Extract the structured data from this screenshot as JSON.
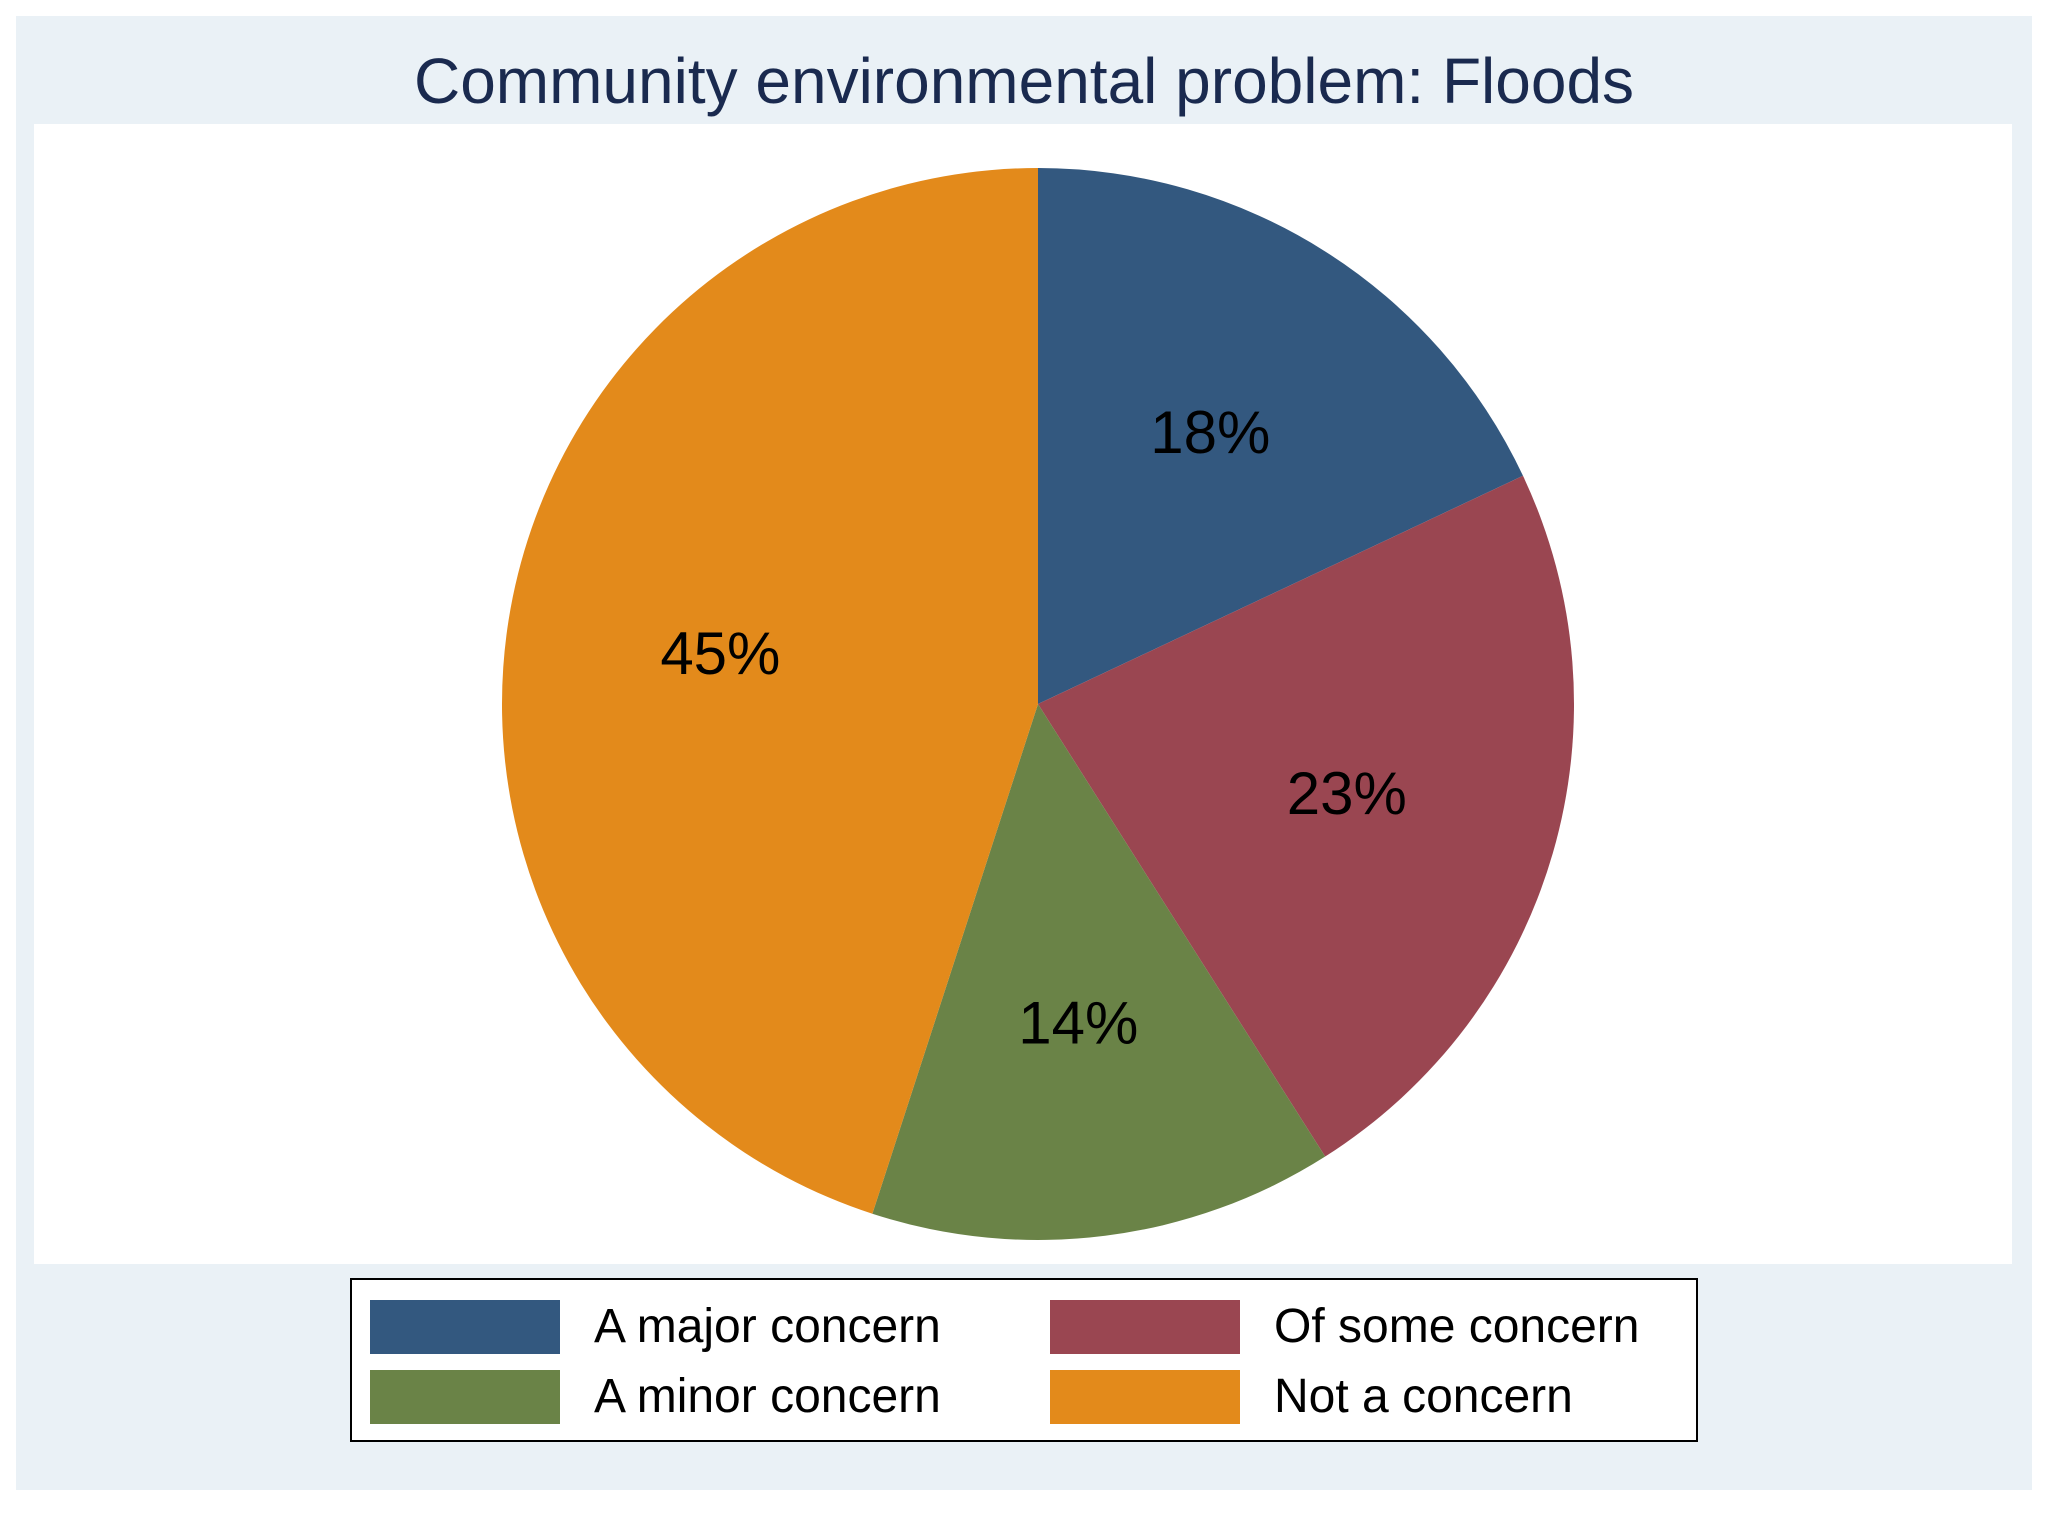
{
  "chart_data": {
    "type": "pie",
    "title": "Community environmental problem: Floods",
    "slices": [
      {
        "label": "A major concern",
        "value": 18,
        "display": "18%",
        "color": "#33587f"
      },
      {
        "label": "Of some concern",
        "value": 23,
        "display": "23%",
        "color": "#9a4651"
      },
      {
        "label": "A minor concern",
        "value": 14,
        "display": "14%",
        "color": "#6a8347"
      },
      {
        "label": "Not a concern",
        "value": 45,
        "display": "45%",
        "color": "#e38a1b"
      }
    ],
    "start_angle": "12 o'clock",
    "direction": "clockwise",
    "legend_position": "bottom"
  },
  "colors": {
    "background": "#eaf1f6",
    "plot_background": "#ffffff",
    "title": "#1a2a4f"
  }
}
